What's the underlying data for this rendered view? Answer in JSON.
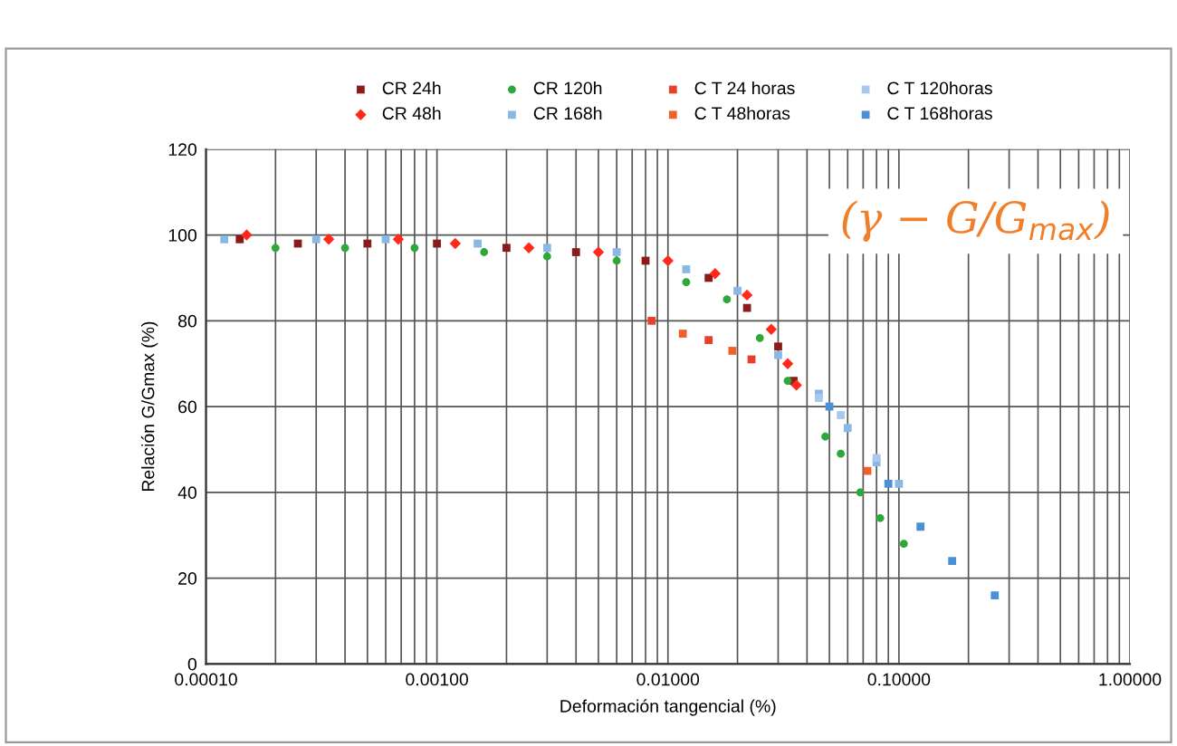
{
  "chart_data": {
    "type": "scatter",
    "xlabel": "Deformación tangencial (%)",
    "ylabel": "Relación G/Gmax (%)",
    "log": "x",
    "grid": true,
    "legend": "top",
    "xlim": [
      0.0001,
      1
    ],
    "xticks": [
      {
        "value": 0.0001,
        "label": "0.00010"
      },
      {
        "value": 0.001,
        "label": "0.00100"
      },
      {
        "value": 0.01,
        "label": "0.01000"
      },
      {
        "value": 0.1,
        "label": "0.10000"
      },
      {
        "value": 1,
        "label": "1.00000"
      }
    ],
    "ylim": [
      0,
      120
    ],
    "yticks": [
      0,
      20,
      40,
      60,
      80,
      100,
      120
    ],
    "annotations": [
      "(γ − G/G$_{max}$)"
    ],
    "series": [
      {
        "name": "CR 24h",
        "color": "#8b1a1a",
        "marker": "square",
        "x": [
          0.00014,
          0.00025,
          0.0005,
          0.001,
          0.002,
          0.004,
          0.008,
          0.015,
          0.022,
          0.03,
          0.035
        ],
        "values": [
          99,
          98,
          98,
          98,
          97,
          96,
          94,
          90,
          83,
          74,
          66
        ]
      },
      {
        "name": "CR 48h",
        "color": "#ff2a1a",
        "marker": "diamond",
        "x": [
          0.00015,
          0.00034,
          0.00068,
          0.0012,
          0.0025,
          0.005,
          0.01,
          0.016,
          0.022,
          0.028,
          0.033,
          0.036
        ],
        "values": [
          100,
          99,
          99,
          98,
          97,
          96,
          94,
          91,
          86,
          78,
          70,
          65
        ]
      },
      {
        "name": "CR 120h",
        "color": "#2ea83a",
        "marker": "circle",
        "x": [
          0.0002,
          0.0004,
          0.0008,
          0.0016,
          0.003,
          0.006,
          0.012,
          0.018,
          0.025,
          0.033,
          0.048,
          0.056,
          0.068,
          0.083,
          0.105
        ],
        "values": [
          97,
          97,
          97,
          96,
          95,
          94,
          89,
          85,
          76,
          66,
          53,
          49,
          40,
          34,
          28
        ]
      },
      {
        "name": "CR 168h",
        "color": "#8ab8e6",
        "marker": "square",
        "x": [
          0.00012,
          0.0003,
          0.0006,
          0.0015,
          0.003,
          0.006,
          0.012,
          0.02,
          0.03,
          0.045,
          0.06,
          0.08,
          0.1
        ],
        "values": [
          99,
          99,
          99,
          98,
          97,
          96,
          92,
          87,
          72,
          63,
          55,
          47,
          42
        ]
      },
      {
        "name": "C T 24 horas",
        "color": "#e8402a",
        "marker": "square",
        "x": [
          0.0085,
          0.015,
          0.023
        ],
        "values": [
          80,
          75.5,
          71
        ]
      },
      {
        "name": "C T 48horas",
        "color": "#f0602a",
        "marker": "square",
        "x": [
          0.0116,
          0.019,
          0.073
        ],
        "values": [
          77,
          73,
          45
        ]
      },
      {
        "name": "C T 120horas",
        "color": "#a8c8f0",
        "marker": "square",
        "x": [
          0.045,
          0.056,
          0.08
        ],
        "values": [
          62,
          58,
          48
        ]
      },
      {
        "name": "C T 168horas",
        "color": "#4a90d9",
        "marker": "square",
        "x": [
          0.05,
          0.09,
          0.124,
          0.17,
          0.26
        ],
        "values": [
          60,
          42,
          32,
          24,
          16
        ]
      }
    ]
  }
}
